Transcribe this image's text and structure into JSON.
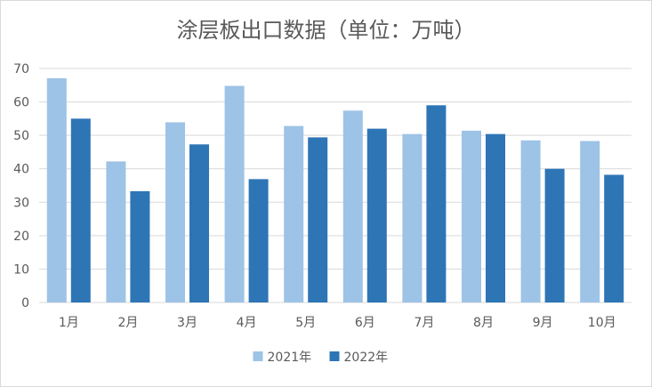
{
  "chart_data": {
    "type": "bar",
    "title": "涂层板出口数据（单位：万吨）",
    "categories": [
      "1月",
      "2月",
      "3月",
      "4月",
      "5月",
      "6月",
      "7月",
      "8月",
      "9月",
      "10月"
    ],
    "series": [
      {
        "name": "2021年",
        "color": "#9dc3e6",
        "values": [
          67.1,
          42.2,
          53.9,
          64.8,
          52.8,
          57.4,
          50.4,
          51.4,
          48.5,
          48.3
        ]
      },
      {
        "name": "2022年",
        "color": "#2e75b6",
        "values": [
          55.0,
          33.3,
          47.3,
          36.9,
          49.4,
          52.0,
          59.0,
          50.4,
          40.0,
          38.2
        ]
      }
    ],
    "ylim": [
      0,
      70
    ],
    "yticks": [
      0,
      10,
      20,
      30,
      40,
      50,
      60,
      70
    ],
    "grid": true,
    "legend": "bottom-center",
    "xlabel": "",
    "ylabel": ""
  }
}
